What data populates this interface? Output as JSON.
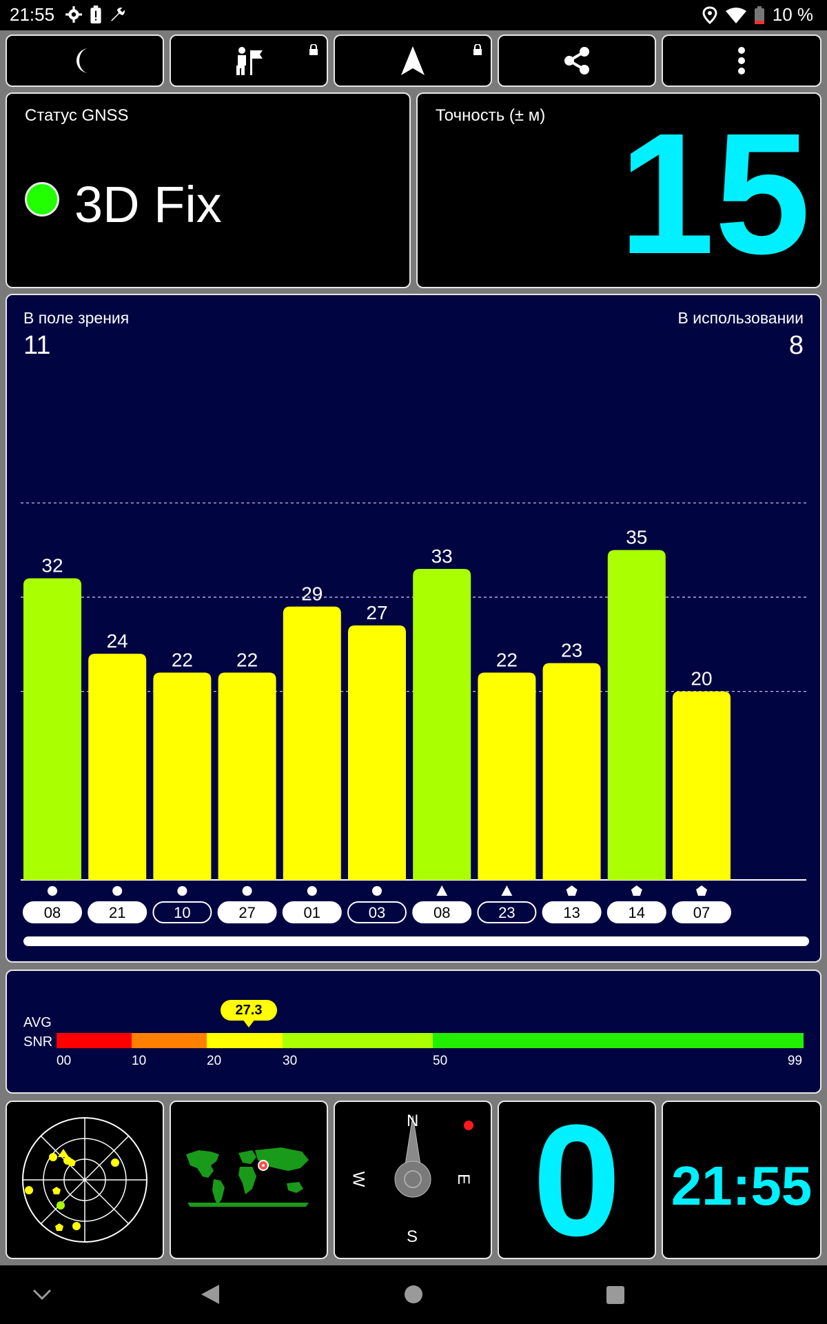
{
  "status_bar": {
    "time": "21:55",
    "battery": "10 %",
    "icons_left": [
      "gear-icon",
      "battery-alert-icon",
      "wrench-icon"
    ],
    "icons_right": [
      "location-pin-icon",
      "wifi-icon",
      "battery-icon"
    ]
  },
  "toolbar": {
    "buttons": [
      "moon-icon",
      "hiker-flag-icon",
      "navigation-arrow-icon",
      "share-icon",
      "more-vert-icon"
    ]
  },
  "gnss_status": {
    "label": "Статус GNSS",
    "value": "3D Fix",
    "indicator_color": "#22ff00"
  },
  "accuracy": {
    "label": "Точность (± м)",
    "value": "15",
    "color": "#00f0ff"
  },
  "satellites": {
    "in_view_label": "В поле зрения",
    "in_view": "11",
    "in_use_label": "В использовании",
    "in_use": "8"
  },
  "chart_data": {
    "type": "bar",
    "categories": [
      "08",
      "21",
      "10",
      "27",
      "01",
      "03",
      "08",
      "23",
      "13",
      "14",
      "07"
    ],
    "values": [
      32,
      24,
      22,
      22,
      29,
      27,
      33,
      22,
      23,
      35,
      20
    ],
    "used": [
      true,
      true,
      false,
      true,
      true,
      false,
      true,
      false,
      true,
      true,
      true
    ],
    "constellation_icons": [
      "circle",
      "circle",
      "circle",
      "circle",
      "circle",
      "circle",
      "triangle",
      "triangle",
      "pentagon",
      "pentagon",
      "pentagon"
    ],
    "colors": {
      "high": "#aaff00",
      "medium": "#ffff00"
    },
    "ylim": [
      0,
      60
    ]
  },
  "snr": {
    "label_avg": "AVG",
    "label_snr": "SNR",
    "avg": "27.3",
    "ticks": [
      "00",
      "10",
      "20",
      "30",
      "50",
      "99"
    ],
    "segment_colors": [
      "#ff0000",
      "#ff8000",
      "#ffff00",
      "#aaff00",
      "#22ee00"
    ]
  },
  "bottom": {
    "compass": {
      "n": "N",
      "e": "E",
      "s": "S",
      "w": "W"
    },
    "speed": "0",
    "clock": "21:55"
  },
  "nav": [
    "chevron-down-icon",
    "back-icon",
    "home-icon",
    "recents-icon"
  ]
}
